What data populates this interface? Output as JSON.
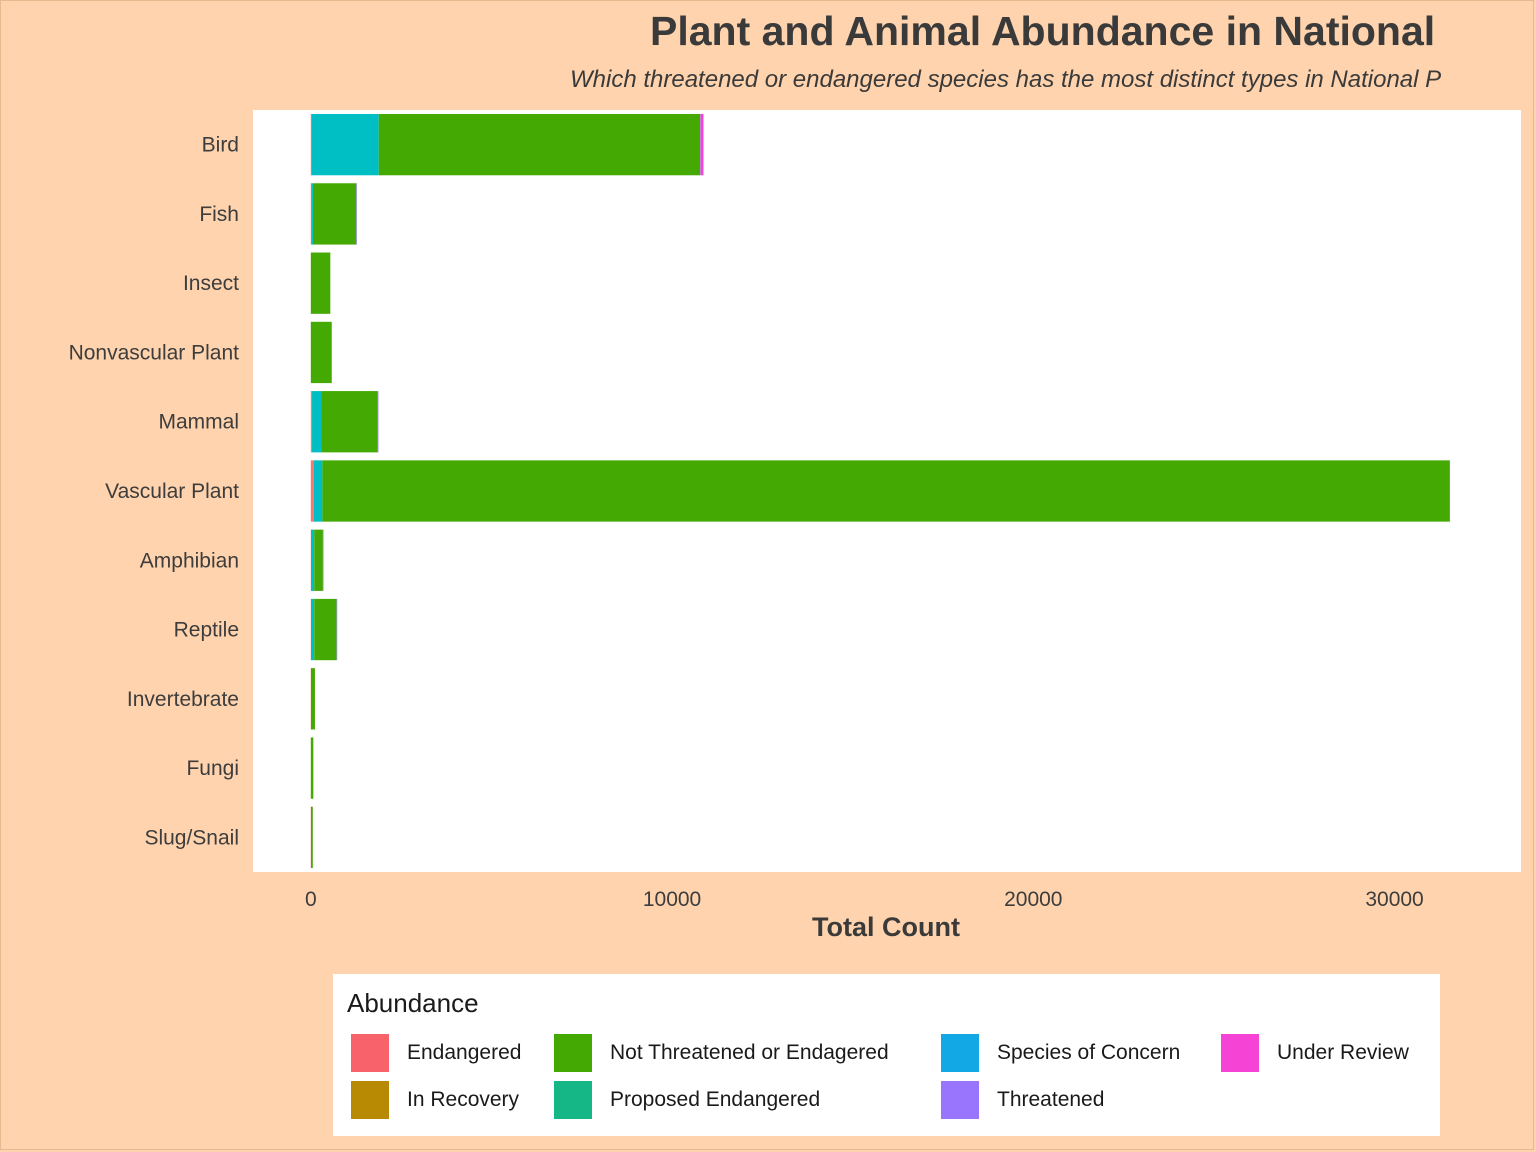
{
  "title": "Plant and Animal Abundance in National",
  "subtitle": "Which threatened or endangered species has the most distinct types in National P",
  "chart_data": {
    "type": "bar",
    "orientation": "horizontal",
    "stacked": true,
    "xlabel": "Total Count",
    "ylabel": "",
    "xlim": [
      -1600,
      33500
    ],
    "xticks": [
      0,
      10000,
      20000,
      30000
    ],
    "grid": false,
    "categories": [
      "Bird",
      "Fish",
      "Insect",
      "Nonvascular Plant",
      "Mammal",
      "Vascular Plant",
      "Amphibian",
      "Reptile",
      "Invertebrate",
      "Fungi",
      "Slug/Snail"
    ],
    "series": [
      {
        "name": "Endangered",
        "color": "#F8766D",
        "values": [
          20,
          20,
          0,
          0,
          30,
          80,
          5,
          5,
          5,
          0,
          5
        ]
      },
      {
        "name": "In Recovery",
        "color": "#B79F00",
        "values": [
          10,
          0,
          0,
          0,
          5,
          0,
          0,
          0,
          0,
          0,
          0
        ]
      },
      {
        "name": "Proposed Endangered",
        "color": "#00BA38",
        "values": [
          0,
          0,
          0,
          0,
          0,
          0,
          0,
          0,
          0,
          0,
          0
        ]
      },
      {
        "name": "Species of Concern",
        "color": "#00BFC4",
        "values": [
          1850,
          40,
          0,
          0,
          260,
          240,
          90,
          90,
          0,
          0,
          0
        ]
      },
      {
        "name": "Not Threatened or Endagered",
        "color": "#44A902",
        "values": [
          8900,
          1200,
          540,
          580,
          1560,
          31200,
          240,
          620,
          110,
          70,
          50
        ]
      },
      {
        "name": "Threatened",
        "color": "#9C7CFF",
        "values": [
          10,
          10,
          0,
          0,
          5,
          10,
          5,
          5,
          0,
          0,
          0
        ]
      },
      {
        "name": "Under Review",
        "color": "#F543D6",
        "values": [
          80,
          0,
          0,
          0,
          0,
          0,
          0,
          0,
          0,
          0,
          0
        ]
      }
    ]
  },
  "legend": {
    "title": "Abundance",
    "placement": "bottom",
    "items": [
      {
        "label": "Endangered",
        "color": "#F8626B"
      },
      {
        "label": "In Recovery",
        "color": "#B88A03"
      },
      {
        "label": "Not Threatened or Endagered",
        "color": "#44A902"
      },
      {
        "label": "Proposed Endangered",
        "color": "#14B785"
      },
      {
        "label": "Species of Concern",
        "color": "#12A7E5"
      },
      {
        "label": "Threatened",
        "color": "#9875FC"
      },
      {
        "label": "Under Review",
        "color": "#F543D6"
      }
    ]
  }
}
